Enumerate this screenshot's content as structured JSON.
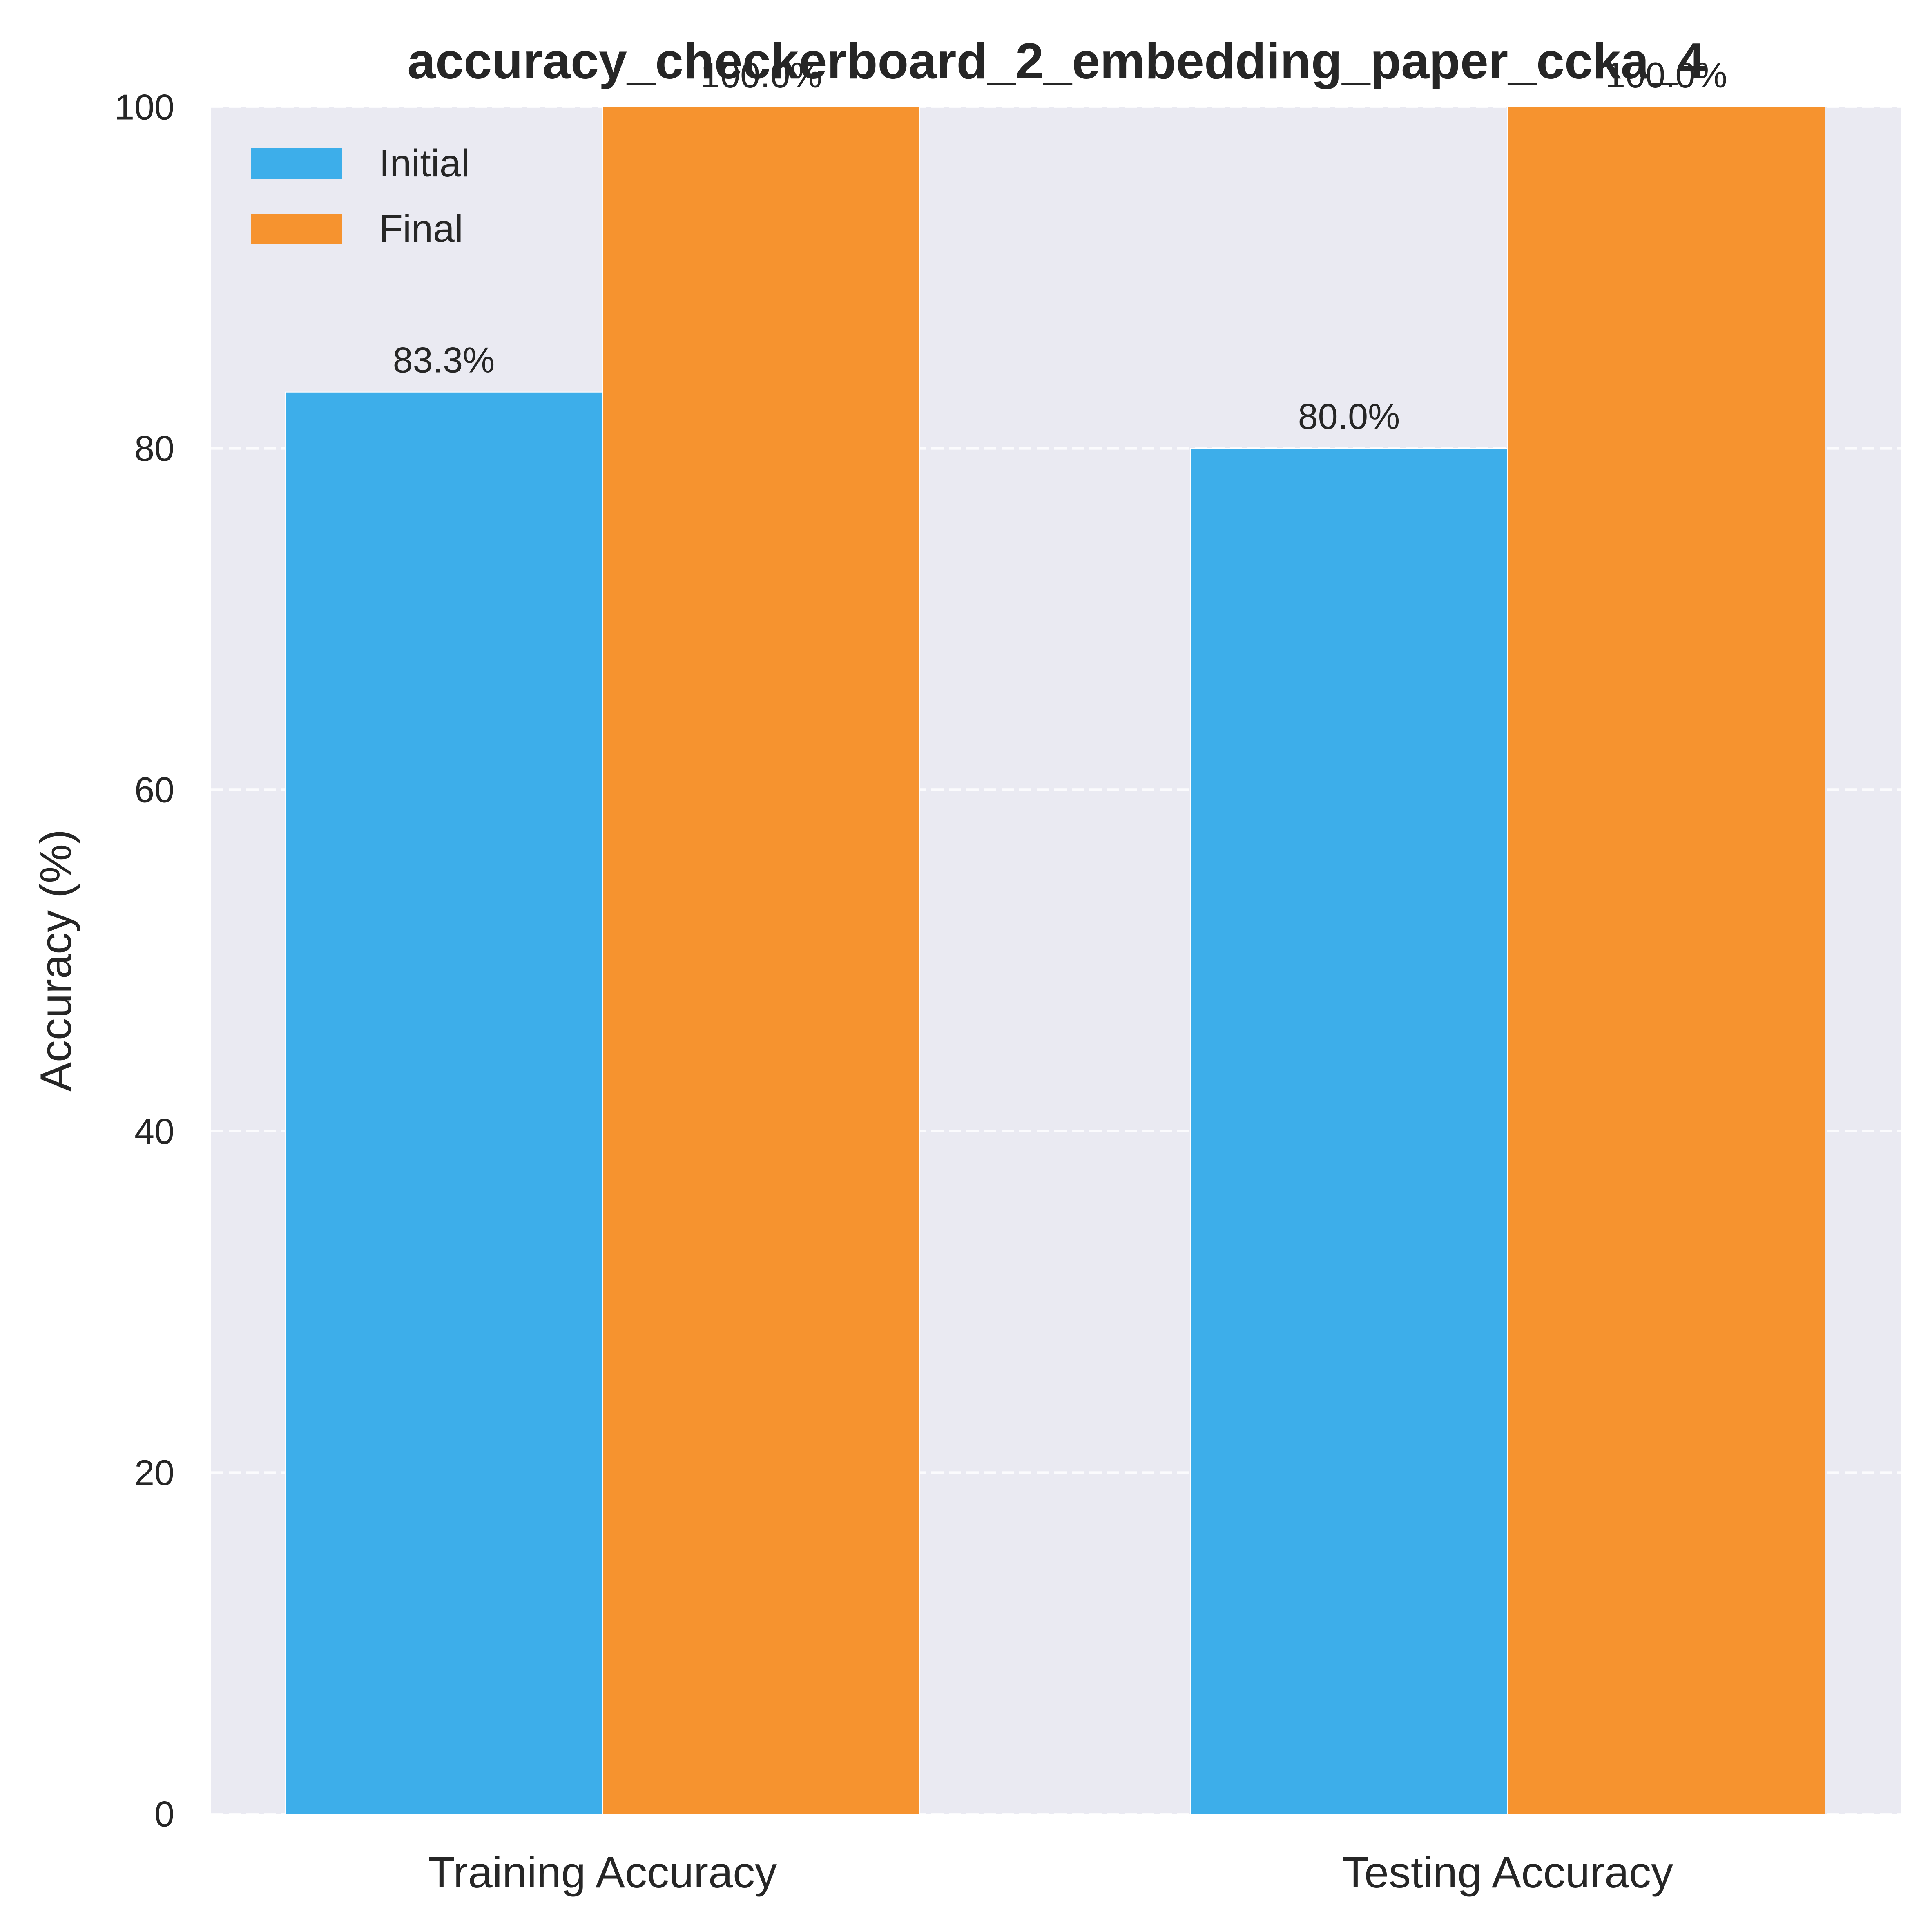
{
  "chart_data": {
    "type": "bar",
    "title": "accuracy_checkerboard_2_embedding_paper_ccka_4",
    "xlabel": "",
    "ylabel": "Accuracy (%)",
    "ylim": [
      0,
      100
    ],
    "yticks": [
      "0",
      "20",
      "40",
      "60",
      "80",
      "100"
    ],
    "categories": [
      "Training Accuracy",
      "Testing Accuracy"
    ],
    "series": [
      {
        "name": "Initial",
        "values": [
          83.3,
          80.0
        ],
        "labels": [
          "83.3%",
          "80.0%"
        ],
        "color": "#3daeea"
      },
      {
        "name": "Final",
        "values": [
          100.0,
          100.0
        ],
        "labels": [
          "100.0%",
          "100.0%"
        ],
        "color": "#f6932f"
      }
    ],
    "grid": true,
    "grid_style": "dashed horizontal",
    "legend_position": "top-left",
    "background_color": "#eaeaf2",
    "text_color": "#262626"
  }
}
